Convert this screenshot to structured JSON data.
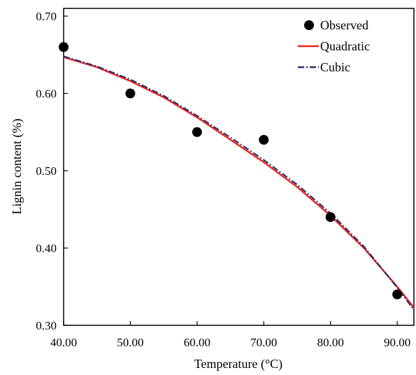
{
  "chart_data": {
    "type": "scatter",
    "title": "",
    "xlabel": "Temperature (°C)",
    "ylabel": "Lignin content (%)",
    "xlim": [
      40,
      92.5
    ],
    "ylim": [
      0.3,
      0.71
    ],
    "xticks": [
      "40.00",
      "50.00",
      "60.00",
      "70.00",
      "80.00",
      "90.00"
    ],
    "yticks": [
      "0.30",
      "0.40",
      "0.50",
      "0.60",
      "0.70"
    ],
    "legend_position": "top-right",
    "grid": false,
    "series": [
      {
        "name": "Observed",
        "kind": "points",
        "color": "#000000",
        "x": [
          40,
          50,
          60,
          70,
          80,
          90
        ],
        "y": [
          0.66,
          0.6,
          0.55,
          0.54,
          0.44,
          0.34
        ]
      },
      {
        "name": "Quadratic",
        "kind": "line",
        "style": "solid",
        "color": "#e8231f",
        "x": [
          40,
          45,
          50,
          55,
          60,
          65,
          70,
          75,
          80,
          85,
          90,
          92.5
        ],
        "y": [
          0.647,
          0.634,
          0.616,
          0.595,
          0.569,
          0.54,
          0.511,
          0.479,
          0.442,
          0.4,
          0.35,
          0.323
        ]
      },
      {
        "name": "Cubic",
        "kind": "line",
        "style": "dashdot",
        "color": "#2b2d6e",
        "x": [
          40,
          45,
          50,
          55,
          60,
          65,
          70,
          75,
          80,
          85,
          90,
          92.5
        ],
        "y": [
          0.648,
          0.635,
          0.618,
          0.597,
          0.571,
          0.543,
          0.514,
          0.482,
          0.445,
          0.402,
          0.349,
          0.32
        ]
      }
    ]
  }
}
